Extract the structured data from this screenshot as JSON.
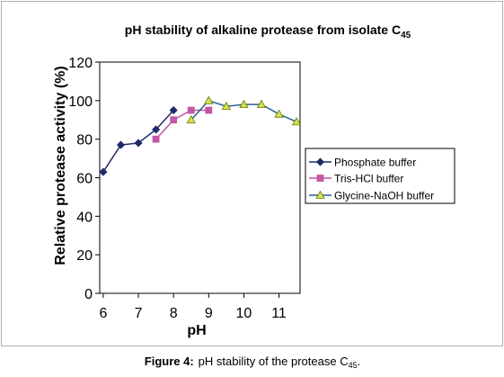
{
  "colors": {
    "phosphate": "#1f2a6b",
    "tris": "#c257a5",
    "glycine_line": "#2c5f8d",
    "glycine_marker": "#d6e34a",
    "frame": "#b0b0b0",
    "axis": "#000000"
  },
  "chart_data": {
    "type": "line",
    "title": "pH stability of alkaline protease from isolate C",
    "title_subscript": "45",
    "xlabel": "pH",
    "ylabel": "Relative protease activity (%)",
    "xlim": [
      5.9,
      11.6
    ],
    "ylim": [
      0,
      120
    ],
    "x_ticks": [
      6,
      7,
      8,
      9,
      10,
      11
    ],
    "x_tick_labels": [
      "6",
      "7",
      "8",
      "9",
      "10",
      "11"
    ],
    "y_ticks": [
      0,
      20,
      40,
      60,
      80,
      100,
      120
    ],
    "y_tick_labels": [
      "0",
      "20",
      "40",
      "60",
      "80",
      "100",
      "120"
    ],
    "grid": false,
    "legend_position": "right",
    "series": [
      {
        "name": "Phosphate buffer",
        "marker": "diamond",
        "x": [
          6.0,
          6.5,
          7.0,
          7.5,
          8.0
        ],
        "y": [
          63,
          77,
          78,
          85,
          95
        ]
      },
      {
        "name": "Tris-HCl buffer",
        "marker": "square",
        "x": [
          7.5,
          8.0,
          8.5,
          9.0
        ],
        "y": [
          80,
          90,
          95,
          95
        ]
      },
      {
        "name": "Glycine-NaOH buffer",
        "marker": "triangle",
        "x": [
          8.5,
          9.0,
          9.5,
          10.0,
          10.5,
          11.0,
          11.5
        ],
        "y": [
          90,
          100,
          97,
          98,
          98,
          93,
          89
        ]
      }
    ]
  },
  "caption": {
    "label": "Figure 4:",
    "text": "pH stability of the protease C",
    "subscript": "45",
    "end": "."
  }
}
